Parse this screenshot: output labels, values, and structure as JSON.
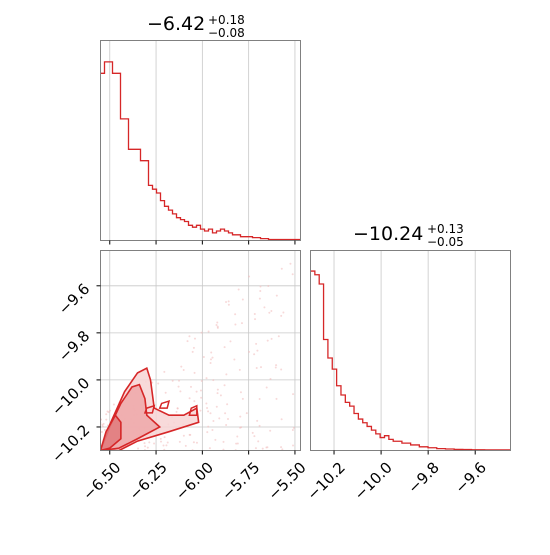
{
  "chart_data": [
    {
      "type": "histogram",
      "panel": "marginal-x",
      "title": {
        "median": "−6.42",
        "upper": "+0.18",
        "lower": "−0.08"
      },
      "xlim": [
        -6.55,
        -5.47
      ],
      "bin_edges_start": -6.55,
      "bin_width": 0.0216,
      "counts": [
        0.88,
        0.94,
        0.94,
        0.88,
        0.88,
        0.64,
        0.64,
        0.48,
        0.48,
        0.48,
        0.42,
        0.42,
        0.29,
        0.27,
        0.25,
        0.21,
        0.18,
        0.16,
        0.14,
        0.12,
        0.11,
        0.1,
        0.08,
        0.07,
        0.08,
        0.06,
        0.05,
        0.06,
        0.04,
        0.05,
        0.06,
        0.05,
        0.04,
        0.03,
        0.03,
        0.02,
        0.02,
        0.02,
        0.015,
        0.015,
        0.01,
        0.01,
        0.005,
        0.005,
        0.005,
        0.005,
        0.005,
        0.005,
        0.005,
        0.005
      ],
      "quantile_lines": [
        -6.5,
        -6.42,
        -6.25
      ],
      "color": "#d62728"
    },
    {
      "type": "histogram",
      "panel": "marginal-y",
      "title": {
        "median": "−10.24",
        "upper": "+0.13",
        "lower": "−0.05"
      },
      "xlim": [
        -10.3,
        -9.45
      ],
      "xticks": [
        "−10.2",
        "−10.0",
        "−9.8",
        "−9.6"
      ],
      "xtick_values": [
        -10.2,
        -10.0,
        -9.8,
        -9.6
      ],
      "bin_edges_start": -10.3,
      "bin_width": 0.0185,
      "counts": [
        0.97,
        0.95,
        0.9,
        0.6,
        0.5,
        0.44,
        0.35,
        0.3,
        0.26,
        0.24,
        0.2,
        0.17,
        0.15,
        0.13,
        0.11,
        0.09,
        0.07,
        0.08,
        0.06,
        0.05,
        0.05,
        0.04,
        0.04,
        0.03,
        0.03,
        0.02,
        0.02,
        0.015,
        0.015,
        0.01,
        0.01,
        0.008,
        0.008,
        0.006,
        0.006,
        0.005,
        0.005,
        0.004,
        0.004,
        0.004,
        0.003,
        0.003,
        0.003,
        0.003,
        0.003,
        0.003
      ],
      "quantile_lines": [
        -10.29,
        -10.24,
        -10.11
      ],
      "color": "#d62728"
    },
    {
      "type": "scatter",
      "panel": "joint",
      "xlim": [
        -6.55,
        -5.47
      ],
      "ylim": [
        -10.3,
        -9.45
      ],
      "xticks": [
        "−6.50",
        "−6.25",
        "−6.00",
        "−5.75",
        "−5.50"
      ],
      "xtick_values": [
        -6.5,
        -6.25,
        -6.0,
        -5.75,
        -5.5
      ],
      "yticks": [
        "−9.6",
        "−9.8",
        "−10.0",
        "−10.2"
      ],
      "ytick_values": [
        -9.6,
        -9.8,
        -10.0,
        -10.2
      ],
      "contour_levels": [
        [
          [
            -6.55,
            -10.3
          ],
          [
            -6.5,
            -10.19
          ],
          [
            -6.42,
            -10.05
          ],
          [
            -6.35,
            -9.97
          ],
          [
            -6.3,
            -9.95
          ],
          [
            -6.28,
            -10.0
          ],
          [
            -6.26,
            -10.12
          ],
          [
            -6.18,
            -10.15
          ],
          [
            -6.1,
            -10.15
          ],
          [
            -6.03,
            -10.12
          ],
          [
            -6.02,
            -10.18
          ],
          [
            -6.18,
            -10.22
          ],
          [
            -6.35,
            -10.26
          ],
          [
            -6.45,
            -10.3
          ]
        ],
        [
          [
            -6.55,
            -10.3
          ],
          [
            -6.5,
            -10.2
          ],
          [
            -6.44,
            -10.1
          ],
          [
            -6.38,
            -10.03
          ],
          [
            -6.34,
            -10.02
          ],
          [
            -6.31,
            -10.08
          ],
          [
            -6.3,
            -10.15
          ],
          [
            -6.23,
            -10.2
          ],
          [
            -6.35,
            -10.25
          ],
          [
            -6.45,
            -10.29
          ]
        ],
        [
          [
            -6.55,
            -10.3
          ],
          [
            -6.52,
            -10.22
          ],
          [
            -6.47,
            -10.15
          ],
          [
            -6.44,
            -10.18
          ],
          [
            -6.44,
            -10.25
          ],
          [
            -6.5,
            -10.29
          ]
        ]
      ],
      "contour_islands": [
        [
          [
            -6.3,
            -10.12
          ],
          [
            -6.26,
            -10.11
          ],
          [
            -6.27,
            -10.14
          ],
          [
            -6.31,
            -10.14
          ]
        ],
        [
          [
            -6.22,
            -10.1
          ],
          [
            -6.18,
            -10.09
          ],
          [
            -6.19,
            -10.12
          ],
          [
            -6.23,
            -10.12
          ]
        ],
        [
          [
            -6.06,
            -10.12
          ],
          [
            -6.03,
            -10.11
          ],
          [
            -6.03,
            -10.15
          ],
          [
            -6.07,
            -10.15
          ]
        ]
      ],
      "point_cloud": {
        "count": 260,
        "x_range": [
          -6.55,
          -5.5
        ],
        "y_range": [
          -10.3,
          -9.5
        ],
        "seed": 7
      },
      "color": "#d62728"
    }
  ]
}
